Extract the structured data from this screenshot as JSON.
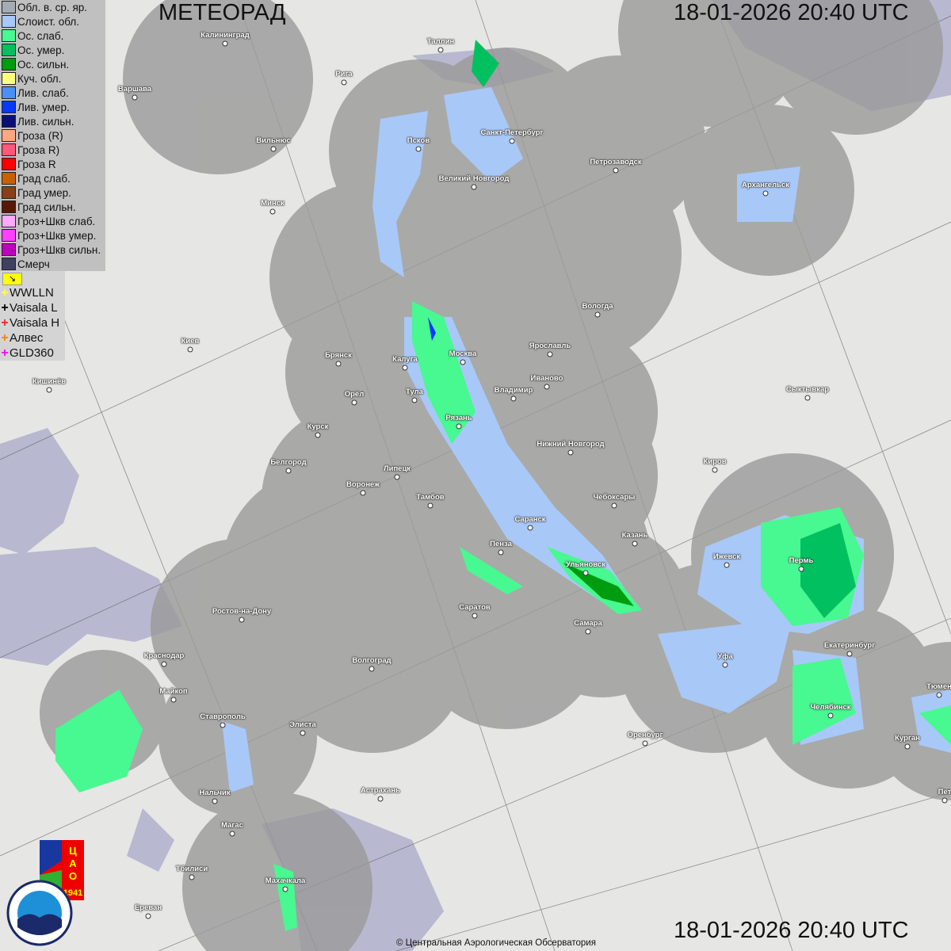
{
  "header": {
    "title": "МЕТЕОРАД",
    "timestamp_top": "18-01-2026  20:40 UTC",
    "timestamp_bottom": "18-01-2026  20:40 UTC"
  },
  "legend": [
    {
      "label": "Обл. в. ср. яр.",
      "color": "#a4acb4"
    },
    {
      "label": "Слоист. обл.",
      "color": "#a8c8f8"
    },
    {
      "label": "Ос. слаб.",
      "color": "#48f890"
    },
    {
      "label": "Ос. умер.",
      "color": "#00c060"
    },
    {
      "label": "Ос. сильн.",
      "color": "#009c10"
    },
    {
      "label": "Куч. обл.",
      "color": "#ffff80"
    },
    {
      "label": "Лив. слаб.",
      "color": "#4890f8"
    },
    {
      "label": "Лив. умер.",
      "color": "#0838f8"
    },
    {
      "label": "Лив. сильн.",
      "color": "#081078"
    },
    {
      "label": "Гроза (R)",
      "color": "#ffa880"
    },
    {
      "label": "Гроза R)",
      "color": "#ff5878"
    },
    {
      "label": "Гроза R",
      "color": "#ff0000"
    },
    {
      "label": "Град слаб.",
      "color": "#c86000"
    },
    {
      "label": "Град умер.",
      "color": "#884018"
    },
    {
      "label": "Град сильн.",
      "color": "#581808"
    },
    {
      "label": "Гроз+Шкв слаб.",
      "color": "#ffa8ff"
    },
    {
      "label": "Гроз+Шкв умер.",
      "color": "#ff40ff"
    },
    {
      "label": "Гроз+Шкв сильн.",
      "color": "#c000c0"
    },
    {
      "label": "Смерч",
      "color": "#404060"
    }
  ],
  "lightning": {
    "toggle_icon": "arrow-corner-icon",
    "sources": [
      {
        "label": "WWLLN",
        "color": "#ffff40"
      },
      {
        "label": "Vaisala L",
        "color": "#000000"
      },
      {
        "label": "Vaisala H",
        "color": "#ff2020"
      },
      {
        "label": "Алвес",
        "color": "#ff8000"
      },
      {
        "label": "GLD360",
        "color": "#ff00ff"
      }
    ]
  },
  "cities": [
    "Калининград",
    "Таллин",
    "Рига",
    "Варшава",
    "Санкт-Петербург",
    "Псков",
    "Вильнюс",
    "Петрозаводск",
    "Великий Новгород",
    "Архангельск",
    "Минск",
    "Вологда",
    "Ярославль",
    "Киев",
    "Москва",
    "Брянск",
    "Калуга",
    "Иваново",
    "Кишинёв",
    "Сыктывкар",
    "Владимир",
    "Орёл",
    "Тула",
    "Рязань",
    "Курск",
    "Нижний Новгород",
    "Белгород",
    "Киров",
    "Липецк",
    "Воронеж",
    "Тамбов",
    "Чебоксары",
    "Саранск",
    "Казань",
    "Пенза",
    "Ижевск",
    "Пермь",
    "Ульяновск",
    "Ростов-на-Дону",
    "Саратов",
    "Самара",
    "Краснодар",
    "Екатеринбург",
    "Уфа",
    "Волгоград",
    "Майкоп",
    "Челябинск",
    "Тюмен",
    "Ставрополь",
    "Элиста",
    "Оренбург",
    "Курган",
    "Нальчик",
    "Астрахань",
    "Пет",
    "Магас",
    "Тбилиси",
    "Махачкала",
    "Ереван"
  ],
  "logos": {
    "cao": "ЦАО 1941",
    "roshydromet": "РОСГИДРОМЕТ ROSHYDROMET"
  },
  "copyright": "© Центральная Аэрологическая Обсерватория",
  "colors": {
    "radar_coverage": "#9a9a9a",
    "water": "#b4b4cc",
    "land": "#e6e6e4"
  }
}
